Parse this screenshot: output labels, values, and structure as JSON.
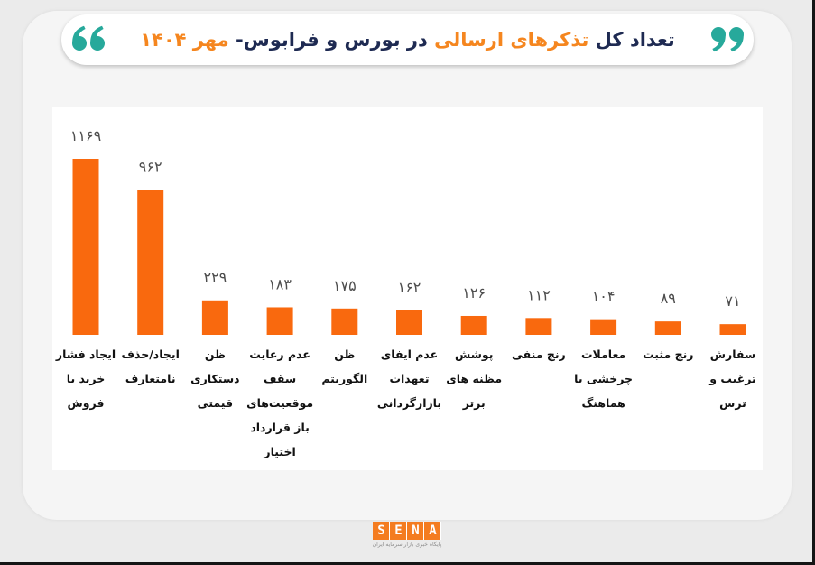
{
  "chart_data": {
    "type": "bar",
    "title": "تعداد کل تذکرهای ارسالی در بورس و فرابوس- مهر ۱۴۰۴",
    "title_highlights": [
      "تذکرهای ارسالی",
      "مهر ۱۴۰۴"
    ],
    "categories": [
      "ایجاد فشار\nخرید یا\nفروش",
      "ایجاد/حذف\nنامتعارف",
      "ظن\nدستکاری\nقیمتی",
      "عدم رعایت\nسقف\nموقعیت‌های\nباز قرارداد\nاختیار",
      "ظن\nالگوریتم",
      "عدم ایفای\nتعهدات\nبازارگردانی",
      "پوشش\nمظنه های\nبرتر",
      "رنج منفی",
      "معاملات\nچرخشی یا\nهماهنگ",
      "رنج مثبت",
      "سفارش\nترغیب و\nترس"
    ],
    "values": [
      1169,
      962,
      229,
      183,
      175,
      162,
      126,
      112,
      104,
      89,
      71
    ],
    "data_labels": [
      "۱۱۶۹",
      "۹۶۲",
      "۲۲۹",
      "۱۸۳",
      "۱۷۵",
      "۱۶۲",
      "۱۲۶",
      "۱۱۲",
      "۱۰۴",
      "۸۹",
      "۷۱"
    ],
    "grid": false
  },
  "logo": {
    "text": "SENA",
    "tagline": "پایگاه خبری بازار سرمایه ایران"
  },
  "icons": {
    "quote_left": "opening-quote-icon",
    "quote_right": "closing-quote-icon"
  },
  "colors": {
    "bar": "#f9690e",
    "title": "#1e2a52",
    "title_highlight": "#f5861f",
    "quote": "#27a99b",
    "logo": "#f47c20"
  }
}
